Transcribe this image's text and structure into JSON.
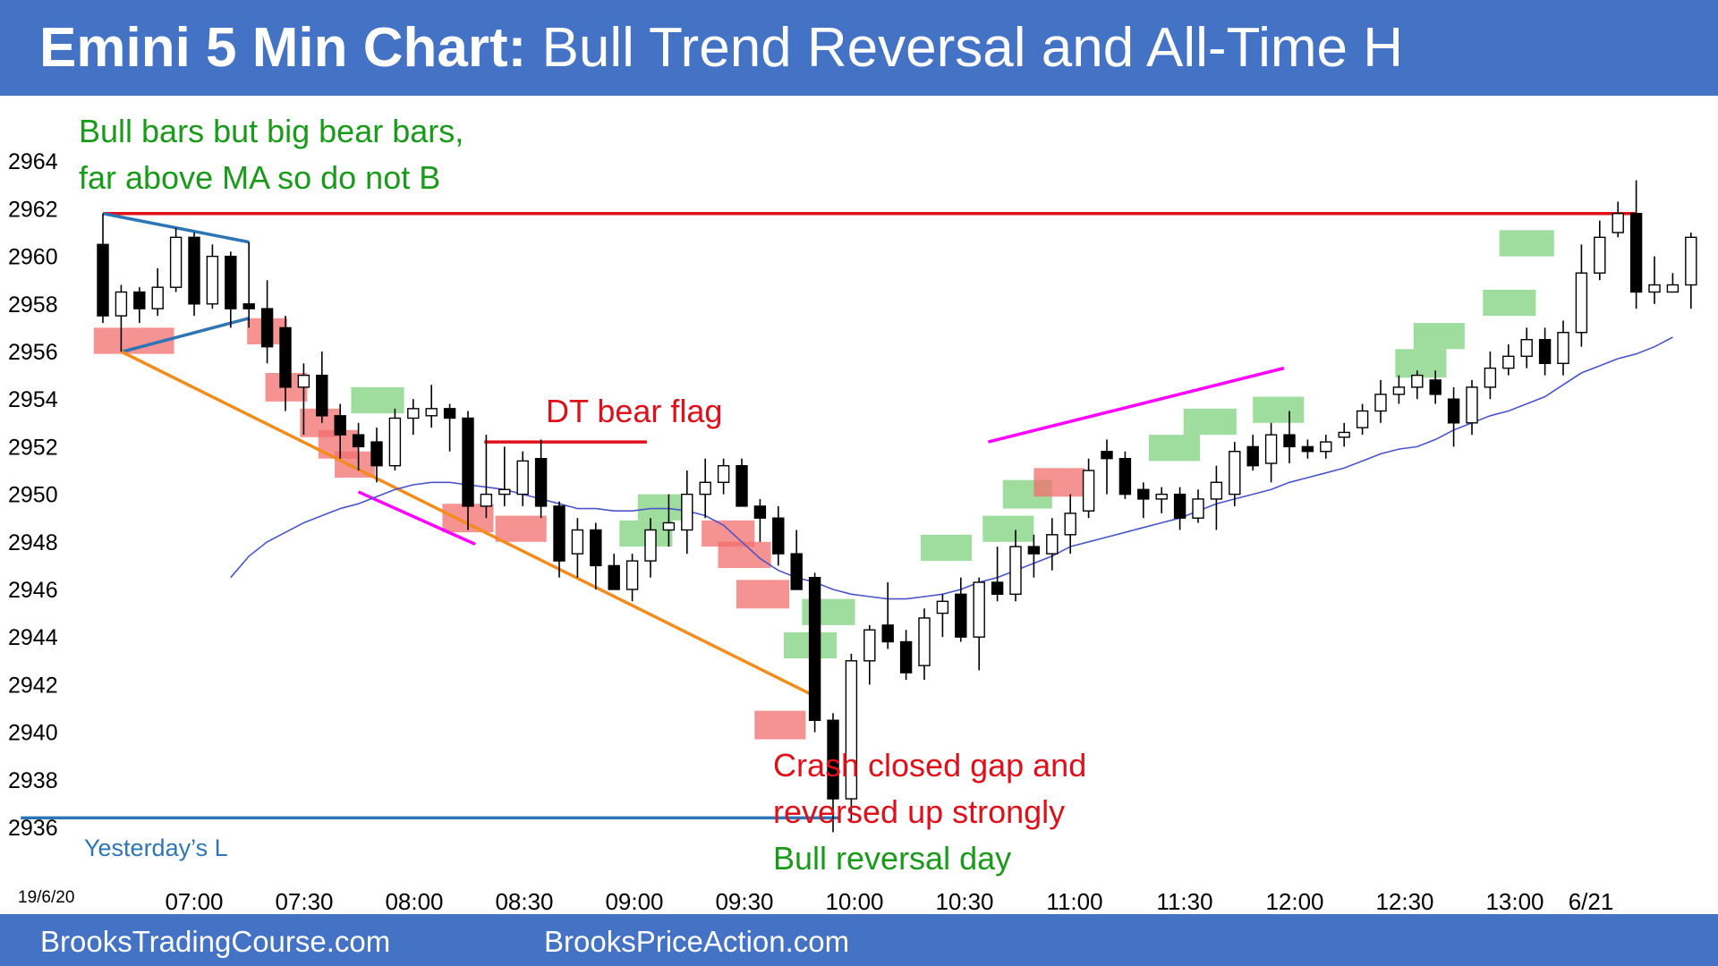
{
  "header": {
    "title_bold": "Emini 5 Min Chart:",
    "title_rest": "Bull Trend Reversal and All-Time H"
  },
  "footer": {
    "left_link": "BrooksTradingCourse.com",
    "right_link": "BrooksPriceAction.com"
  },
  "colors": {
    "banner": "#4472c4",
    "bull_highlight": "#7fd17f",
    "bear_highlight": "#f26d6d",
    "resistance_line": "#e0101a",
    "moving_average": "#4a55c8",
    "wedge_lines": "#2e75b6",
    "trend_line": "#f28c1c",
    "channel_line": "#ff00ff"
  },
  "chart_data": {
    "type": "candlestick",
    "date_label": "19/6/20",
    "x_ticks": [
      "07:00",
      "07:30",
      "08:00",
      "08:30",
      "09:00",
      "09:30",
      "10:00",
      "10:30",
      "11:00",
      "11:30",
      "12:00",
      "12:30",
      "13:00",
      "6/21"
    ],
    "y_ticks": [
      2936,
      2938,
      2940,
      2942,
      2944,
      2946,
      2948,
      2950,
      2952,
      2954,
      2956,
      2958,
      2960,
      2962,
      2964
    ],
    "ylim": [
      2935,
      2966
    ],
    "bars": [
      {
        "o": 2960.5,
        "h": 2961.8,
        "l": 2957.2,
        "c": 2957.5
      },
      {
        "o": 2957.5,
        "h": 2958.8,
        "l": 2956.0,
        "c": 2958.5
      },
      {
        "o": 2958.5,
        "h": 2958.7,
        "l": 2957.2,
        "c": 2957.8
      },
      {
        "o": 2957.8,
        "h": 2959.5,
        "l": 2957.5,
        "c": 2958.7
      },
      {
        "o": 2958.7,
        "h": 2961.2,
        "l": 2958.5,
        "c": 2960.8
      },
      {
        "o": 2960.8,
        "h": 2961.0,
        "l": 2957.5,
        "c": 2958.0
      },
      {
        "o": 2958.0,
        "h": 2960.5,
        "l": 2957.8,
        "c": 2960.0
      },
      {
        "o": 2960.0,
        "h": 2960.2,
        "l": 2957.0,
        "c": 2957.8
      },
      {
        "o": 2958.0,
        "h": 2960.6,
        "l": 2957.0,
        "c": 2957.8
      },
      {
        "o": 2957.8,
        "h": 2959.0,
        "l": 2955.5,
        "c": 2956.2
      },
      {
        "o": 2957.0,
        "h": 2957.5,
        "l": 2953.5,
        "c": 2954.5
      },
      {
        "o": 2954.5,
        "h": 2955.5,
        "l": 2952.5,
        "c": 2955.0
      },
      {
        "o": 2955.0,
        "h": 2956.0,
        "l": 2953.0,
        "c": 2953.3
      },
      {
        "o": 2953.3,
        "h": 2953.8,
        "l": 2951.5,
        "c": 2952.5
      },
      {
        "o": 2952.5,
        "h": 2953.0,
        "l": 2951.0,
        "c": 2952.0
      },
      {
        "o": 2952.2,
        "h": 2952.8,
        "l": 2950.5,
        "c": 2951.2
      },
      {
        "o": 2951.2,
        "h": 2953.6,
        "l": 2951.0,
        "c": 2953.2
      },
      {
        "o": 2953.2,
        "h": 2954.0,
        "l": 2952.5,
        "c": 2953.6
      },
      {
        "o": 2953.3,
        "h": 2954.6,
        "l": 2952.8,
        "c": 2953.6
      },
      {
        "o": 2953.6,
        "h": 2953.8,
        "l": 2951.8,
        "c": 2953.2
      },
      {
        "o": 2953.2,
        "h": 2953.5,
        "l": 2948.5,
        "c": 2949.5
      },
      {
        "o": 2949.5,
        "h": 2952.5,
        "l": 2949.0,
        "c": 2950.0
      },
      {
        "o": 2950.0,
        "h": 2952.0,
        "l": 2949.5,
        "c": 2950.2
      },
      {
        "o": 2950.0,
        "h": 2951.8,
        "l": 2949.5,
        "c": 2951.4
      },
      {
        "o": 2951.5,
        "h": 2952.3,
        "l": 2949.0,
        "c": 2949.5
      },
      {
        "o": 2949.5,
        "h": 2949.7,
        "l": 2946.5,
        "c": 2947.2
      },
      {
        "o": 2947.5,
        "h": 2949.0,
        "l": 2946.5,
        "c": 2948.5
      },
      {
        "o": 2948.5,
        "h": 2948.8,
        "l": 2946.0,
        "c": 2947.0
      },
      {
        "o": 2947.0,
        "h": 2947.5,
        "l": 2946.0,
        "c": 2946.0
      },
      {
        "o": 2946.0,
        "h": 2947.5,
        "l": 2945.5,
        "c": 2947.2
      },
      {
        "o": 2947.2,
        "h": 2949.0,
        "l": 2946.5,
        "c": 2948.5
      },
      {
        "o": 2948.5,
        "h": 2950.0,
        "l": 2947.8,
        "c": 2948.8
      },
      {
        "o": 2948.5,
        "h": 2951.0,
        "l": 2947.5,
        "c": 2950.0
      },
      {
        "o": 2950.0,
        "h": 2951.5,
        "l": 2949.0,
        "c": 2950.5
      },
      {
        "o": 2950.5,
        "h": 2951.5,
        "l": 2950.0,
        "c": 2951.2
      },
      {
        "o": 2951.2,
        "h": 2951.5,
        "l": 2949.5,
        "c": 2949.5
      },
      {
        "o": 2949.5,
        "h": 2949.8,
        "l": 2948.0,
        "c": 2949.0
      },
      {
        "o": 2949.0,
        "h": 2949.5,
        "l": 2947.0,
        "c": 2947.5
      },
      {
        "o": 2947.5,
        "h": 2948.5,
        "l": 2946.0,
        "c": 2946.0
      },
      {
        "o": 2946.5,
        "h": 2946.7,
        "l": 2940.0,
        "c": 2940.5
      },
      {
        "o": 2940.5,
        "h": 2940.8,
        "l": 2935.8,
        "c": 2937.2
      },
      {
        "o": 2937.2,
        "h": 2943.3,
        "l": 2936.3,
        "c": 2943.0
      },
      {
        "o": 2943.0,
        "h": 2944.5,
        "l": 2942.0,
        "c": 2944.3
      },
      {
        "o": 2944.5,
        "h": 2946.3,
        "l": 2943.5,
        "c": 2943.8
      },
      {
        "o": 2943.8,
        "h": 2944.3,
        "l": 2942.2,
        "c": 2942.5
      },
      {
        "o": 2942.8,
        "h": 2945.2,
        "l": 2942.2,
        "c": 2944.8
      },
      {
        "o": 2945.0,
        "h": 2945.8,
        "l": 2944.0,
        "c": 2945.5
      },
      {
        "o": 2945.8,
        "h": 2946.5,
        "l": 2943.8,
        "c": 2944.0
      },
      {
        "o": 2944.0,
        "h": 2946.5,
        "l": 2942.6,
        "c": 2946.3
      },
      {
        "o": 2946.3,
        "h": 2947.8,
        "l": 2945.5,
        "c": 2945.8
      },
      {
        "o": 2945.8,
        "h": 2948.5,
        "l": 2945.5,
        "c": 2947.8
      },
      {
        "o": 2947.8,
        "h": 2948.3,
        "l": 2946.5,
        "c": 2947.5
      },
      {
        "o": 2947.5,
        "h": 2949.0,
        "l": 2946.8,
        "c": 2948.3
      },
      {
        "o": 2948.3,
        "h": 2950.0,
        "l": 2947.5,
        "c": 2949.2
      },
      {
        "o": 2949.3,
        "h": 2951.5,
        "l": 2949.0,
        "c": 2951.0
      },
      {
        "o": 2951.8,
        "h": 2952.3,
        "l": 2950.0,
        "c": 2951.5
      },
      {
        "o": 2951.5,
        "h": 2951.8,
        "l": 2949.8,
        "c": 2950.0
      },
      {
        "o": 2950.2,
        "h": 2950.5,
        "l": 2949.0,
        "c": 2949.8
      },
      {
        "o": 2949.8,
        "h": 2950.3,
        "l": 2949.2,
        "c": 2950.0
      },
      {
        "o": 2950.0,
        "h": 2950.3,
        "l": 2948.5,
        "c": 2949.0
      },
      {
        "o": 2949.0,
        "h": 2950.2,
        "l": 2948.8,
        "c": 2949.8
      },
      {
        "o": 2949.8,
        "h": 2951.2,
        "l": 2948.5,
        "c": 2950.5
      },
      {
        "o": 2950.0,
        "h": 2952.2,
        "l": 2949.5,
        "c": 2951.8
      },
      {
        "o": 2952.0,
        "h": 2952.5,
        "l": 2951.0,
        "c": 2951.2
      },
      {
        "o": 2951.3,
        "h": 2953.0,
        "l": 2950.5,
        "c": 2952.5
      },
      {
        "o": 2952.5,
        "h": 2953.5,
        "l": 2951.3,
        "c": 2952.0
      },
      {
        "o": 2952.0,
        "h": 2952.3,
        "l": 2951.5,
        "c": 2951.8
      },
      {
        "o": 2951.8,
        "h": 2952.5,
        "l": 2951.5,
        "c": 2952.2
      },
      {
        "o": 2952.4,
        "h": 2953.0,
        "l": 2952.0,
        "c": 2952.6
      },
      {
        "o": 2952.8,
        "h": 2953.8,
        "l": 2952.5,
        "c": 2953.5
      },
      {
        "o": 2953.5,
        "h": 2954.8,
        "l": 2953.0,
        "c": 2954.2
      },
      {
        "o": 2954.2,
        "h": 2955.0,
        "l": 2953.8,
        "c": 2954.5
      },
      {
        "o": 2954.5,
        "h": 2955.2,
        "l": 2954.0,
        "c": 2955.0
      },
      {
        "o": 2954.8,
        "h": 2955.2,
        "l": 2953.8,
        "c": 2954.2
      },
      {
        "o": 2954.0,
        "h": 2954.5,
        "l": 2952.0,
        "c": 2953.0
      },
      {
        "o": 2953.0,
        "h": 2954.8,
        "l": 2952.5,
        "c": 2954.5
      },
      {
        "o": 2954.5,
        "h": 2956.0,
        "l": 2954.0,
        "c": 2955.3
      },
      {
        "o": 2955.3,
        "h": 2956.3,
        "l": 2955.0,
        "c": 2955.8
      },
      {
        "o": 2955.8,
        "h": 2957.0,
        "l": 2955.3,
        "c": 2956.5
      },
      {
        "o": 2956.5,
        "h": 2957.0,
        "l": 2955.0,
        "c": 2955.5
      },
      {
        "o": 2955.5,
        "h": 2957.3,
        "l": 2955.0,
        "c": 2956.8
      },
      {
        "o": 2956.8,
        "h": 2960.5,
        "l": 2956.2,
        "c": 2959.3
      },
      {
        "o": 2959.3,
        "h": 2961.5,
        "l": 2959.0,
        "c": 2960.8
      },
      {
        "o": 2961.0,
        "h": 2962.3,
        "l": 2960.8,
        "c": 2961.8
      },
      {
        "o": 2961.8,
        "h": 2963.2,
        "l": 2957.8,
        "c": 2958.5
      },
      {
        "o": 2958.5,
        "h": 2960.0,
        "l": 2958.0,
        "c": 2958.8
      },
      {
        "o": 2958.5,
        "h": 2959.3,
        "l": 2958.5,
        "c": 2958.8
      },
      {
        "o": 2958.8,
        "h": 2961.0,
        "l": 2957.8,
        "c": 2960.8
      }
    ],
    "ma_bar_start": 7,
    "ma": [
      2946.5,
      2947.4,
      2948.0,
      2948.4,
      2948.8,
      2949.1,
      2949.4,
      2949.6,
      2949.9,
      2950.2,
      2950.4,
      2950.5,
      2950.5,
      2950.4,
      2950.3,
      2950.2,
      2950.0,
      2949.8,
      2949.6,
      2949.4,
      2949.4,
      2949.3,
      2949.3,
      2949.4,
      2949.4,
      2949.3,
      2949.1,
      2948.7,
      2948.0,
      2947.3,
      2946.8,
      2946.5,
      2946.3,
      2946.0,
      2945.8,
      2945.7,
      2945.6,
      2945.6,
      2945.7,
      2945.8,
      2946.0,
      2946.3,
      2946.5,
      2946.8,
      2947.1,
      2947.4,
      2947.8,
      2948.0,
      2948.2,
      2948.4,
      2948.6,
      2948.8,
      2949.0,
      2949.3,
      2949.6,
      2949.8,
      2950.0,
      2950.2,
      2950.5,
      2950.7,
      2950.9,
      2951.1,
      2951.4,
      2951.7,
      2951.9,
      2952.0,
      2952.3,
      2952.7,
      2953.0,
      2953.3,
      2953.5,
      2953.8,
      2954.1,
      2954.6,
      2955.1,
      2955.4,
      2955.7,
      2955.9,
      2956.2,
      2956.6
    ],
    "highlights": [
      {
        "kind": "bear",
        "x0": 0,
        "x1": 4.4,
        "y0": 2955.9,
        "y1": 2957.0
      },
      {
        "kind": "bear",
        "x0": 8.4,
        "x1": 10.6,
        "y0": 2956.3,
        "y1": 2957.4
      },
      {
        "kind": "bear",
        "x0": 9.4,
        "x1": 11.7,
        "y0": 2953.9,
        "y1": 2955.1
      },
      {
        "kind": "bear",
        "x0": 11.3,
        "x1": 13.5,
        "y0": 2952.4,
        "y1": 2953.6
      },
      {
        "kind": "bear",
        "x0": 12.3,
        "x1": 14.5,
        "y0": 2951.5,
        "y1": 2952.7
      },
      {
        "kind": "bear",
        "x0": 13.2,
        "x1": 15.4,
        "y0": 2950.7,
        "y1": 2951.8
      },
      {
        "kind": "bull",
        "x0": 14.1,
        "x1": 17.0,
        "y0": 2953.4,
        "y1": 2954.5
      },
      {
        "kind": "bear",
        "x0": 19.1,
        "x1": 21.9,
        "y0": 2948.4,
        "y1": 2949.6
      },
      {
        "kind": "bear",
        "x0": 22.0,
        "x1": 24.8,
        "y0": 2948.0,
        "y1": 2949.1
      },
      {
        "kind": "bull",
        "x0": 28.8,
        "x1": 31.7,
        "y0": 2947.8,
        "y1": 2948.9
      },
      {
        "kind": "bull",
        "x0": 29.8,
        "x1": 32.7,
        "y0": 2948.9,
        "y1": 2950.0
      },
      {
        "kind": "bear",
        "x0": 33.3,
        "x1": 36.2,
        "y0": 2947.8,
        "y1": 2948.9
      },
      {
        "kind": "bear",
        "x0": 34.2,
        "x1": 37.1,
        "y0": 2946.9,
        "y1": 2948.0
      },
      {
        "kind": "bear",
        "x0": 35.2,
        "x1": 38.1,
        "y0": 2945.2,
        "y1": 2946.4
      },
      {
        "kind": "bear",
        "x0": 36.2,
        "x1": 39.0,
        "y0": 2939.7,
        "y1": 2940.9
      },
      {
        "kind": "bull",
        "x0": 37.8,
        "x1": 40.7,
        "y0": 2943.1,
        "y1": 2944.2
      },
      {
        "kind": "bull",
        "x0": 38.8,
        "x1": 41.7,
        "y0": 2944.5,
        "y1": 2945.6
      },
      {
        "kind": "bull",
        "x0": 45.3,
        "x1": 48.1,
        "y0": 2947.2,
        "y1": 2948.3
      },
      {
        "kind": "bull",
        "x0": 48.7,
        "x1": 51.5,
        "y0": 2948.0,
        "y1": 2949.1
      },
      {
        "kind": "bull",
        "x0": 49.8,
        "x1": 52.5,
        "y0": 2949.4,
        "y1": 2950.6
      },
      {
        "kind": "bear",
        "x0": 51.5,
        "x1": 54.3,
        "y0": 2949.9,
        "y1": 2951.1
      },
      {
        "kind": "bull",
        "x0": 57.8,
        "x1": 60.6,
        "y0": 2951.4,
        "y1": 2952.5
      },
      {
        "kind": "bull",
        "x0": 59.7,
        "x1": 62.6,
        "y0": 2952.5,
        "y1": 2953.6
      },
      {
        "kind": "bull",
        "x0": 63.5,
        "x1": 66.3,
        "y0": 2953.0,
        "y1": 2954.1
      },
      {
        "kind": "bull",
        "x0": 71.3,
        "x1": 74.1,
        "y0": 2954.9,
        "y1": 2956.1
      },
      {
        "kind": "bull",
        "x0": 72.3,
        "x1": 75.1,
        "y0": 2956.1,
        "y1": 2957.2
      },
      {
        "kind": "bull",
        "x0": 76.1,
        "x1": 79.0,
        "y0": 2957.5,
        "y1": 2958.6
      },
      {
        "kind": "bull",
        "x0": 77.0,
        "x1": 80.0,
        "y0": 2960.0,
        "y1": 2961.1
      }
    ],
    "lines": [
      {
        "kind": "resistance",
        "x0": 0,
        "y0": 2961.8,
        "x1": 84,
        "y1": 2961.8
      },
      {
        "kind": "yesterday_low",
        "x0": -4.5,
        "y0": 2936.4,
        "x1": 40.3,
        "y1": 2936.4
      },
      {
        "kind": "dt_bear_flag",
        "x0": 20.9,
        "y0": 2952.2,
        "x1": 29.8,
        "y1": 2952.2
      },
      {
        "kind": "wedge_upper",
        "x0": 0,
        "y0": 2961.8,
        "x1": 8.0,
        "y1": 2960.6
      },
      {
        "kind": "wedge_lower",
        "x0": 1.1,
        "y0": 2956.0,
        "x1": 8.0,
        "y1": 2957.4
      },
      {
        "kind": "trend",
        "x0": 1.0,
        "y0": 2956.0,
        "x1": 39.3,
        "y1": 2941.4
      },
      {
        "kind": "wedge_bottom",
        "x0": 14.0,
        "y0": 2950.1,
        "x1": 20.4,
        "y1": 2947.9
      },
      {
        "kind": "channel",
        "x0": 48.5,
        "y0": 2952.2,
        "x1": 64.7,
        "y1": 2955.3
      }
    ],
    "annotations": {
      "top_left_line1": "Bull bars but big bear bars,",
      "top_left_line2": "far above MA so do not B",
      "dt_bear_flag": "DT bear flag",
      "crash_line1": "Crash closed gap and",
      "crash_line2": "reversed up strongly",
      "bull_reversal": "Bull reversal day",
      "yesterday_low": "Yesterday’s L"
    }
  }
}
